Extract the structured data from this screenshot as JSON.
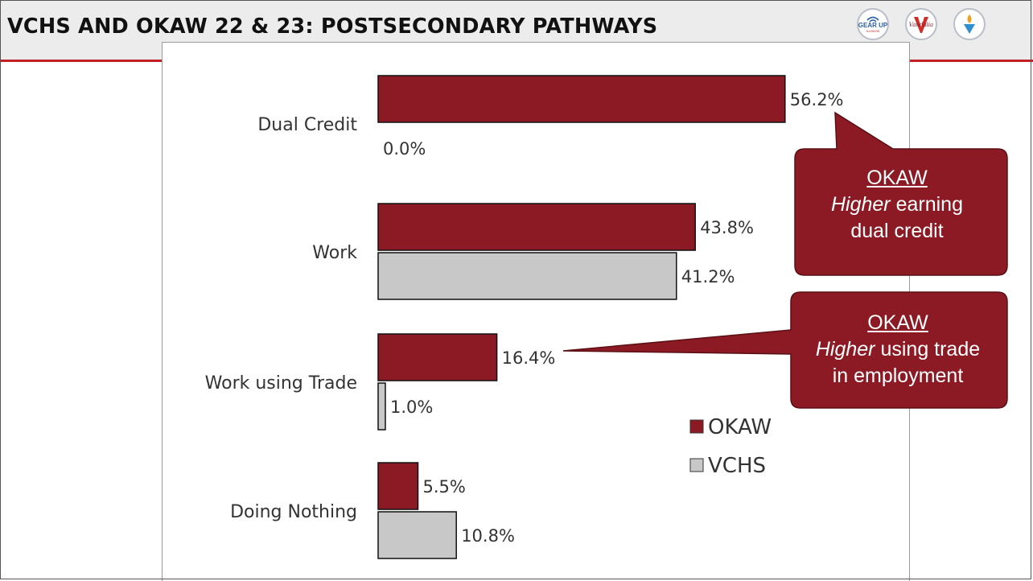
{
  "title": "VCHS AND OKAW 22 & 23: POSTSECONDARY PATHWAYS",
  "logos": [
    "gear-up-logo",
    "vandalia-logo",
    "torch-logo"
  ],
  "logo_text": {
    "gearup": "GEAR UP",
    "gearup_sub": "ILLINOIS",
    "vandalia": "Vandalia"
  },
  "colors": {
    "okaw": "#8b1a24",
    "vchs": "#c8c8c8",
    "accent": "#c21f26"
  },
  "chart_data": {
    "type": "bar",
    "orientation": "horizontal",
    "categories": [
      "Dual Credit",
      "Work",
      "Work using Trade",
      "Doing Nothing"
    ],
    "series": [
      {
        "name": "OKAW",
        "values": [
          56.2,
          43.8,
          16.4,
          5.5
        ],
        "labels": [
          "56.2%",
          "43.8%",
          "16.4%",
          "5.5%"
        ],
        "color": "#8b1a24"
      },
      {
        "name": "VCHS",
        "values": [
          0.0,
          41.2,
          1.0,
          10.8
        ],
        "labels": [
          "0.0%",
          "41.2%",
          "1.0%",
          "10.8%"
        ],
        "color": "#c8c8c8"
      }
    ],
    "xlim": [
      0,
      60
    ],
    "legend": "right",
    "grid": false
  },
  "callouts": [
    {
      "title": "OKAW",
      "emphasis": "Higher",
      "rest": "earning",
      "line3": "dual credit"
    },
    {
      "title": "OKAW",
      "emphasis": "Higher",
      "rest": "using trade",
      "line3": "in employment"
    }
  ]
}
